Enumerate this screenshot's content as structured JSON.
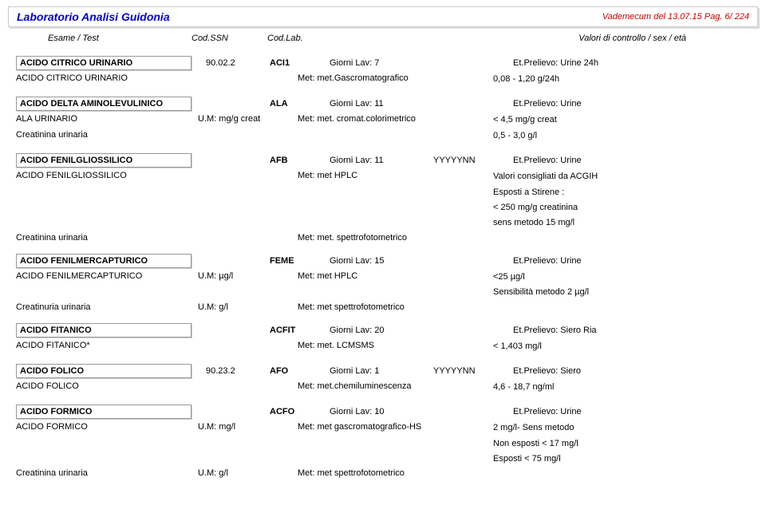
{
  "header": {
    "lab_title": "Laboratorio Analisi Guidonia",
    "vademecum": "Vademecum del 13.07.15 Pag. 6/ 224"
  },
  "columns": {
    "esame": "Esame / Test",
    "ssn": "Cod.SSN",
    "lab": "Cod.Lab.",
    "right": "Valori di controllo / sex / età"
  },
  "blocks": [
    {
      "test": "ACIDO CITRICO URINARIO",
      "ssn": "90.02.2",
      "lab": "ACI1",
      "lav": "Giorni Lav:  7",
      "pat": "",
      "prel": "Et.Prelievo: Urine 24h",
      "subs": [
        {
          "name": "ACIDO CITRICO URINARIO",
          "um": "",
          "met": "Met:    met.Gascromatografico",
          "val": "0,08 - 1,20 g/24h"
        }
      ]
    },
    {
      "test": "ACIDO DELTA AMINOLEVULINICO",
      "ssn": "",
      "lab": "ALA",
      "lav": "Giorni Lav:  11",
      "pat": "",
      "prel": "Et.Prelievo: Urine",
      "subs": [
        {
          "name": "ALA URINARIO",
          "um": "U.M:  mg/g creat",
          "met": "Met:    met. cromat.colorimetrico",
          "val": "< 4,5 mg/g creat"
        },
        {
          "name": "Creatinina urinaria",
          "um": "",
          "met": "",
          "val": "0,5 - 3,0 g/l"
        }
      ]
    },
    {
      "test": "ACIDO FENILGLIOSSILICO",
      "ssn": "",
      "lab": "AFB",
      "lav": "Giorni Lav:  11",
      "pat": "YYYYYNN",
      "prel": "Et.Prelievo: Urine",
      "subs": [
        {
          "name": "ACIDO FENILGLIOSSILICO",
          "um": "",
          "met": "Met:    met HPLC",
          "val": "Valori consigliati da ACGIH"
        },
        {
          "name": "",
          "um": "",
          "met": "",
          "val": "Esposti a Stirene :"
        },
        {
          "name": "",
          "um": "",
          "met": "",
          "val": "< 250 mg/g creatinina"
        },
        {
          "name": "",
          "um": "",
          "met": "",
          "val": "sens metodo 15 mg/l"
        },
        {
          "name": "Creatinina urinaria",
          "um": "",
          "met": "Met:    met. spettrofotometrico",
          "val": ""
        }
      ]
    },
    {
      "test": "ACIDO FENILMERCAPTURICO",
      "ssn": "",
      "lab": "FEME",
      "lav": "Giorni Lav:  15",
      "pat": "",
      "prel": "Et.Prelievo: Urine",
      "subs": [
        {
          "name": "ACIDO FENILMERCAPTURICO",
          "um": "U.M:  µg/l",
          "met": "Met:   met  HPLC",
          "val": "<25 µg/l"
        },
        {
          "name": "",
          "um": "",
          "met": "",
          "val": "Sensibilità metodo 2 µg/l"
        },
        {
          "name": "Creatinuria urinaria",
          "um": "U.M:  g/l",
          "met": "Met:   met spettrofotometrico",
          "val": ""
        }
      ]
    },
    {
      "test": "ACIDO FITANICO",
      "ssn": "",
      "lab": "ACFIT",
      "lav": "Giorni Lav:  20",
      "pat": "",
      "prel": "Et.Prelievo: Siero Ria",
      "subs": [
        {
          "name": "ACIDO FITANICO*",
          "um": "",
          "met": "Met:    met. LCMSMS",
          "val": "< 1,403 mg/l"
        }
      ]
    },
    {
      "test": "ACIDO FOLICO",
      "ssn": "90.23.2",
      "lab": "AFO",
      "lav": "Giorni Lav:  1",
      "pat": "YYYYYNN",
      "prel": "Et.Prelievo: Siero",
      "subs": [
        {
          "name": "ACIDO FOLICO",
          "um": "",
          "met": "Met:    met.chemiluminescenza",
          "val": "4,6 - 18,7 ng/ml"
        }
      ]
    },
    {
      "test": "ACIDO FORMICO",
      "ssn": "",
      "lab": "ACFO",
      "lav": "Giorni Lav:  10",
      "pat": "",
      "prel": "Et.Prelievo: Urine",
      "subs": [
        {
          "name": "ACIDO FORMICO",
          "um": "U.M:   mg/l",
          "met": "Met:   met gascromatografico-HS",
          "val": "2  mg/l- Sens metodo"
        },
        {
          "name": "",
          "um": "",
          "met": "",
          "val": "Non esposti < 17 mg/l"
        },
        {
          "name": "",
          "um": "",
          "met": "",
          "val": "Esposti      < 75 mg/l"
        },
        {
          "name": "Creatinina urinaria",
          "um": "U.M:   g/l",
          "met": "Met:   met spettrofotometrico",
          "val": ""
        }
      ]
    }
  ]
}
